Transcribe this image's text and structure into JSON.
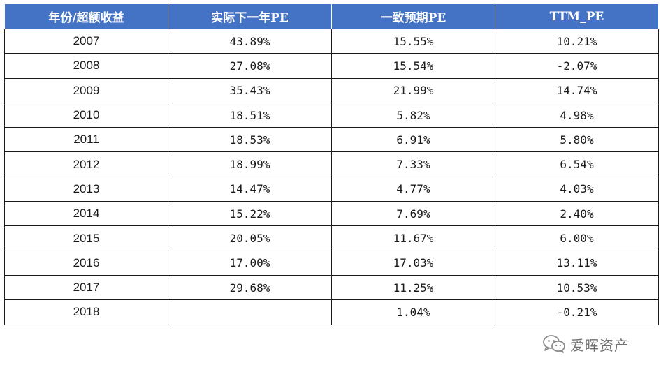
{
  "table": {
    "headers": [
      "年份/超额收益",
      "实际下一年PE",
      "一致预期PE",
      "TTM_PE"
    ],
    "rows": [
      [
        "2007",
        "43.89%",
        "15.55%",
        "10.21%"
      ],
      [
        "2008",
        "27.08%",
        "15.54%",
        "-2.07%"
      ],
      [
        "2009",
        "35.43%",
        "21.99%",
        "14.74%"
      ],
      [
        "2010",
        "18.51%",
        "5.82%",
        "4.98%"
      ],
      [
        "2011",
        "18.53%",
        "6.91%",
        "5.80%"
      ],
      [
        "2012",
        "18.99%",
        "7.33%",
        "6.54%"
      ],
      [
        "2013",
        "14.47%",
        "4.77%",
        "4.03%"
      ],
      [
        "2014",
        "15.22%",
        "7.69%",
        "2.40%"
      ],
      [
        "2015",
        "20.05%",
        "11.67%",
        "6.00%"
      ],
      [
        "2016",
        "17.00%",
        "17.03%",
        "13.11%"
      ],
      [
        "2017",
        "29.68%",
        "11.25%",
        "10.53%"
      ],
      [
        "2018",
        "",
        "1.04%",
        "-0.21%"
      ]
    ],
    "header_bg": "#4472c4",
    "header_fg": "#ffffff"
  },
  "watermark": {
    "icon": "wechat-icon",
    "text": "爱晖资产"
  }
}
